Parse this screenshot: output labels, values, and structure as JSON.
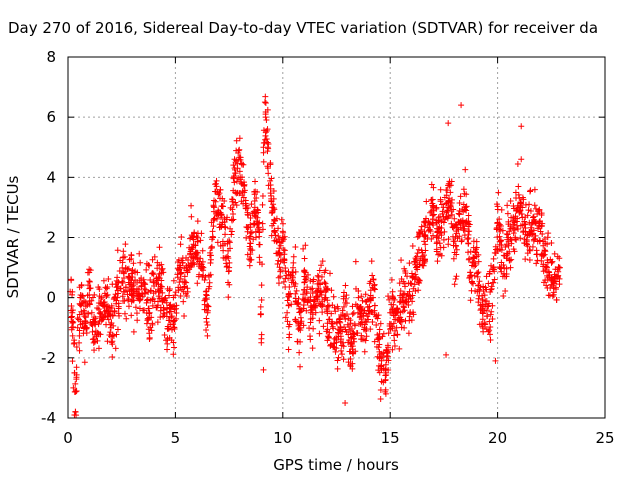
{
  "chart_data": {
    "type": "scatter",
    "title": "Day 270 of 2016, Sidereal Day-to-day VTEC variation (SDTVAR) for receiver da",
    "xlabel": "GPS time / hours",
    "ylabel": "SDTVAR / TECUs",
    "xlim": [
      0,
      25
    ],
    "ylim": [
      -4,
      8
    ],
    "xticks": [
      0,
      5,
      10,
      15,
      20,
      25
    ],
    "yticks": [
      -4,
      -2,
      0,
      2,
      4,
      6,
      8
    ],
    "grid": true,
    "marker": "plus",
    "series": [
      {
        "name": "SDTVAR",
        "color": "#ff0000",
        "anchors": [
          [
            0.1,
            0.2
          ],
          [
            0.2,
            -0.5
          ],
          [
            0.3,
            -2.5
          ],
          [
            0.35,
            -3.8
          ],
          [
            0.45,
            -1.0
          ],
          [
            0.6,
            0.0
          ],
          [
            0.8,
            -0.8
          ],
          [
            1.0,
            0.3
          ],
          [
            1.2,
            -0.8
          ],
          [
            1.5,
            -0.5
          ],
          [
            1.8,
            -0.3
          ],
          [
            2.0,
            -1.0
          ],
          [
            2.3,
            0.0
          ],
          [
            2.6,
            0.8
          ],
          [
            2.9,
            0.5
          ],
          [
            3.2,
            0.2
          ],
          [
            3.5,
            0.5
          ],
          [
            3.8,
            -0.5
          ],
          [
            4.0,
            0.5
          ],
          [
            4.3,
            0.3
          ],
          [
            4.6,
            -0.5
          ],
          [
            4.9,
            -0.8
          ],
          [
            5.2,
            1.0
          ],
          [
            5.5,
            0.5
          ],
          [
            5.8,
            2.0
          ],
          [
            6.0,
            1.5
          ],
          [
            6.3,
            1.0
          ],
          [
            6.5,
            -0.5
          ],
          [
            6.8,
            3.0
          ],
          [
            7.2,
            2.5
          ],
          [
            7.5,
            1.0
          ],
          [
            7.7,
            4.0
          ],
          [
            8.0,
            4.2
          ],
          [
            8.2,
            3.5
          ],
          [
            8.5,
            1.8
          ],
          [
            8.7,
            3.0
          ],
          [
            8.9,
            2.5
          ],
          [
            9.0,
            -1.5
          ],
          [
            9.1,
            5.0
          ],
          [
            9.2,
            6.0
          ],
          [
            9.3,
            5.0
          ],
          [
            9.5,
            3.0
          ],
          [
            9.8,
            1.5
          ],
          [
            10.0,
            2.0
          ],
          [
            10.2,
            -0.5
          ],
          [
            10.5,
            0.5
          ],
          [
            10.8,
            -1.0
          ],
          [
            11.0,
            0.5
          ],
          [
            11.3,
            -0.5
          ],
          [
            11.6,
            0.2
          ],
          [
            12.0,
            0.0
          ],
          [
            12.3,
            -0.8
          ],
          [
            12.6,
            -1.2
          ],
          [
            12.9,
            -0.6
          ],
          [
            13.2,
            -1.5
          ],
          [
            13.5,
            -0.5
          ],
          [
            13.8,
            -1.0
          ],
          [
            14.2,
            0.0
          ],
          [
            14.5,
            -1.8
          ],
          [
            14.8,
            -2.5
          ],
          [
            15.0,
            -0.5
          ],
          [
            15.3,
            -1.0
          ],
          [
            15.6,
            0.0
          ],
          [
            15.9,
            0.2
          ],
          [
            16.2,
            1.0
          ],
          [
            16.5,
            1.5
          ],
          [
            16.8,
            2.5
          ],
          [
            17.0,
            3.0
          ],
          [
            17.2,
            2.2
          ],
          [
            17.5,
            2.5
          ],
          [
            17.8,
            3.5
          ],
          [
            18.0,
            1.5
          ],
          [
            18.2,
            2.5
          ],
          [
            18.5,
            3.0
          ],
          [
            18.8,
            0.5
          ],
          [
            19.0,
            1.5
          ],
          [
            19.3,
            -0.5
          ],
          [
            19.6,
            -0.2
          ],
          [
            19.8,
            0.5
          ],
          [
            20.0,
            2.5
          ],
          [
            20.3,
            0.8
          ],
          [
            20.5,
            2.0
          ],
          [
            20.8,
            2.5
          ],
          [
            21.0,
            3.0
          ],
          [
            21.3,
            2.2
          ],
          [
            21.6,
            2.5
          ],
          [
            22.0,
            2.2
          ],
          [
            22.3,
            1.0
          ],
          [
            22.6,
            0.5
          ],
          [
            22.9,
            1.0
          ]
        ],
        "outliers": [
          [
            18.3,
            6.4
          ],
          [
            9.2,
            6.1
          ],
          [
            17.7,
            5.8
          ],
          [
            21.1,
            5.7
          ],
          [
            8.0,
            5.3
          ],
          [
            12.9,
            -3.5
          ],
          [
            14.8,
            -3.2
          ],
          [
            0.3,
            -3.9
          ],
          [
            0.25,
            -3.0
          ],
          [
            9.1,
            -2.4
          ],
          [
            17.6,
            -1.9
          ],
          [
            19.9,
            -2.1
          ],
          [
            21.1,
            4.6
          ],
          [
            13.4,
            1.2
          ]
        ]
      }
    ]
  }
}
